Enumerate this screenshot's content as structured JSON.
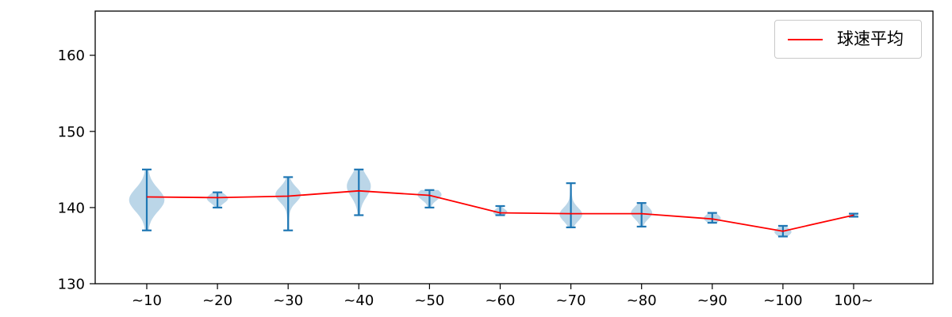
{
  "figure": {
    "background": "#ffffff"
  },
  "legend": {
    "label": "球速平均",
    "line_color": "#ff0000"
  },
  "chart_data": {
    "type": "violin",
    "title": "",
    "xlabel": "",
    "ylabel": "",
    "grid": false,
    "legend_position": "upper right",
    "categories": [
      "~10",
      "~20",
      "~30",
      "~40",
      "~50",
      "~60",
      "~70",
      "~80",
      "~90",
      "~100",
      "100~"
    ],
    "yticks": [
      130,
      140,
      150,
      160
    ],
    "ylim": [
      130,
      165.8
    ],
    "violin_fill": "#1f77b4",
    "violin_fill_opacity": 0.3,
    "violin_line_color": "#1f77b4",
    "series": [
      {
        "name": "球速平均",
        "type": "line",
        "color": "#ff0000",
        "values": [
          141.4,
          141.3,
          141.5,
          142.2,
          141.6,
          139.3,
          139.2,
          139.2,
          138.5,
          136.9,
          139.0
        ]
      }
    ],
    "violins": [
      {
        "category": "~10",
        "min": 137.0,
        "max": 145.0,
        "peak": 141.0,
        "sigma": 1.5,
        "halfwidth": 0.25
      },
      {
        "category": "~20",
        "min": 140.0,
        "max": 142.0,
        "peak": 141.2,
        "sigma": 0.6,
        "halfwidth": 0.15
      },
      {
        "category": "~30",
        "min": 137.0,
        "max": 144.0,
        "peak": 141.7,
        "sigma": 1.0,
        "halfwidth": 0.18
      },
      {
        "category": "~40",
        "min": 139.0,
        "max": 145.0,
        "peak": 142.8,
        "sigma": 1.4,
        "halfwidth": 0.17
      },
      {
        "category": "~50",
        "min": 140.0,
        "max": 142.3,
        "peak": 141.7,
        "sigma": 0.7,
        "halfwidth": 0.17
      },
      {
        "category": "~60",
        "min": 139.0,
        "max": 140.2,
        "peak": 139.4,
        "sigma": 0.4,
        "halfwidth": 0.1
      },
      {
        "category": "~70",
        "min": 137.4,
        "max": 143.2,
        "peak": 139.1,
        "sigma": 0.9,
        "halfwidth": 0.16
      },
      {
        "category": "~80",
        "min": 137.5,
        "max": 140.6,
        "peak": 139.3,
        "sigma": 0.8,
        "halfwidth": 0.15
      },
      {
        "category": "~90",
        "min": 138.0,
        "max": 139.3,
        "peak": 138.6,
        "sigma": 0.5,
        "halfwidth": 0.12
      },
      {
        "category": "~100",
        "min": 136.2,
        "max": 137.6,
        "peak": 136.8,
        "sigma": 0.5,
        "halfwidth": 0.12
      },
      {
        "category": "100~",
        "min": 138.8,
        "max": 139.2,
        "peak": 139.0,
        "sigma": 0.25,
        "halfwidth": 0.06
      }
    ]
  }
}
